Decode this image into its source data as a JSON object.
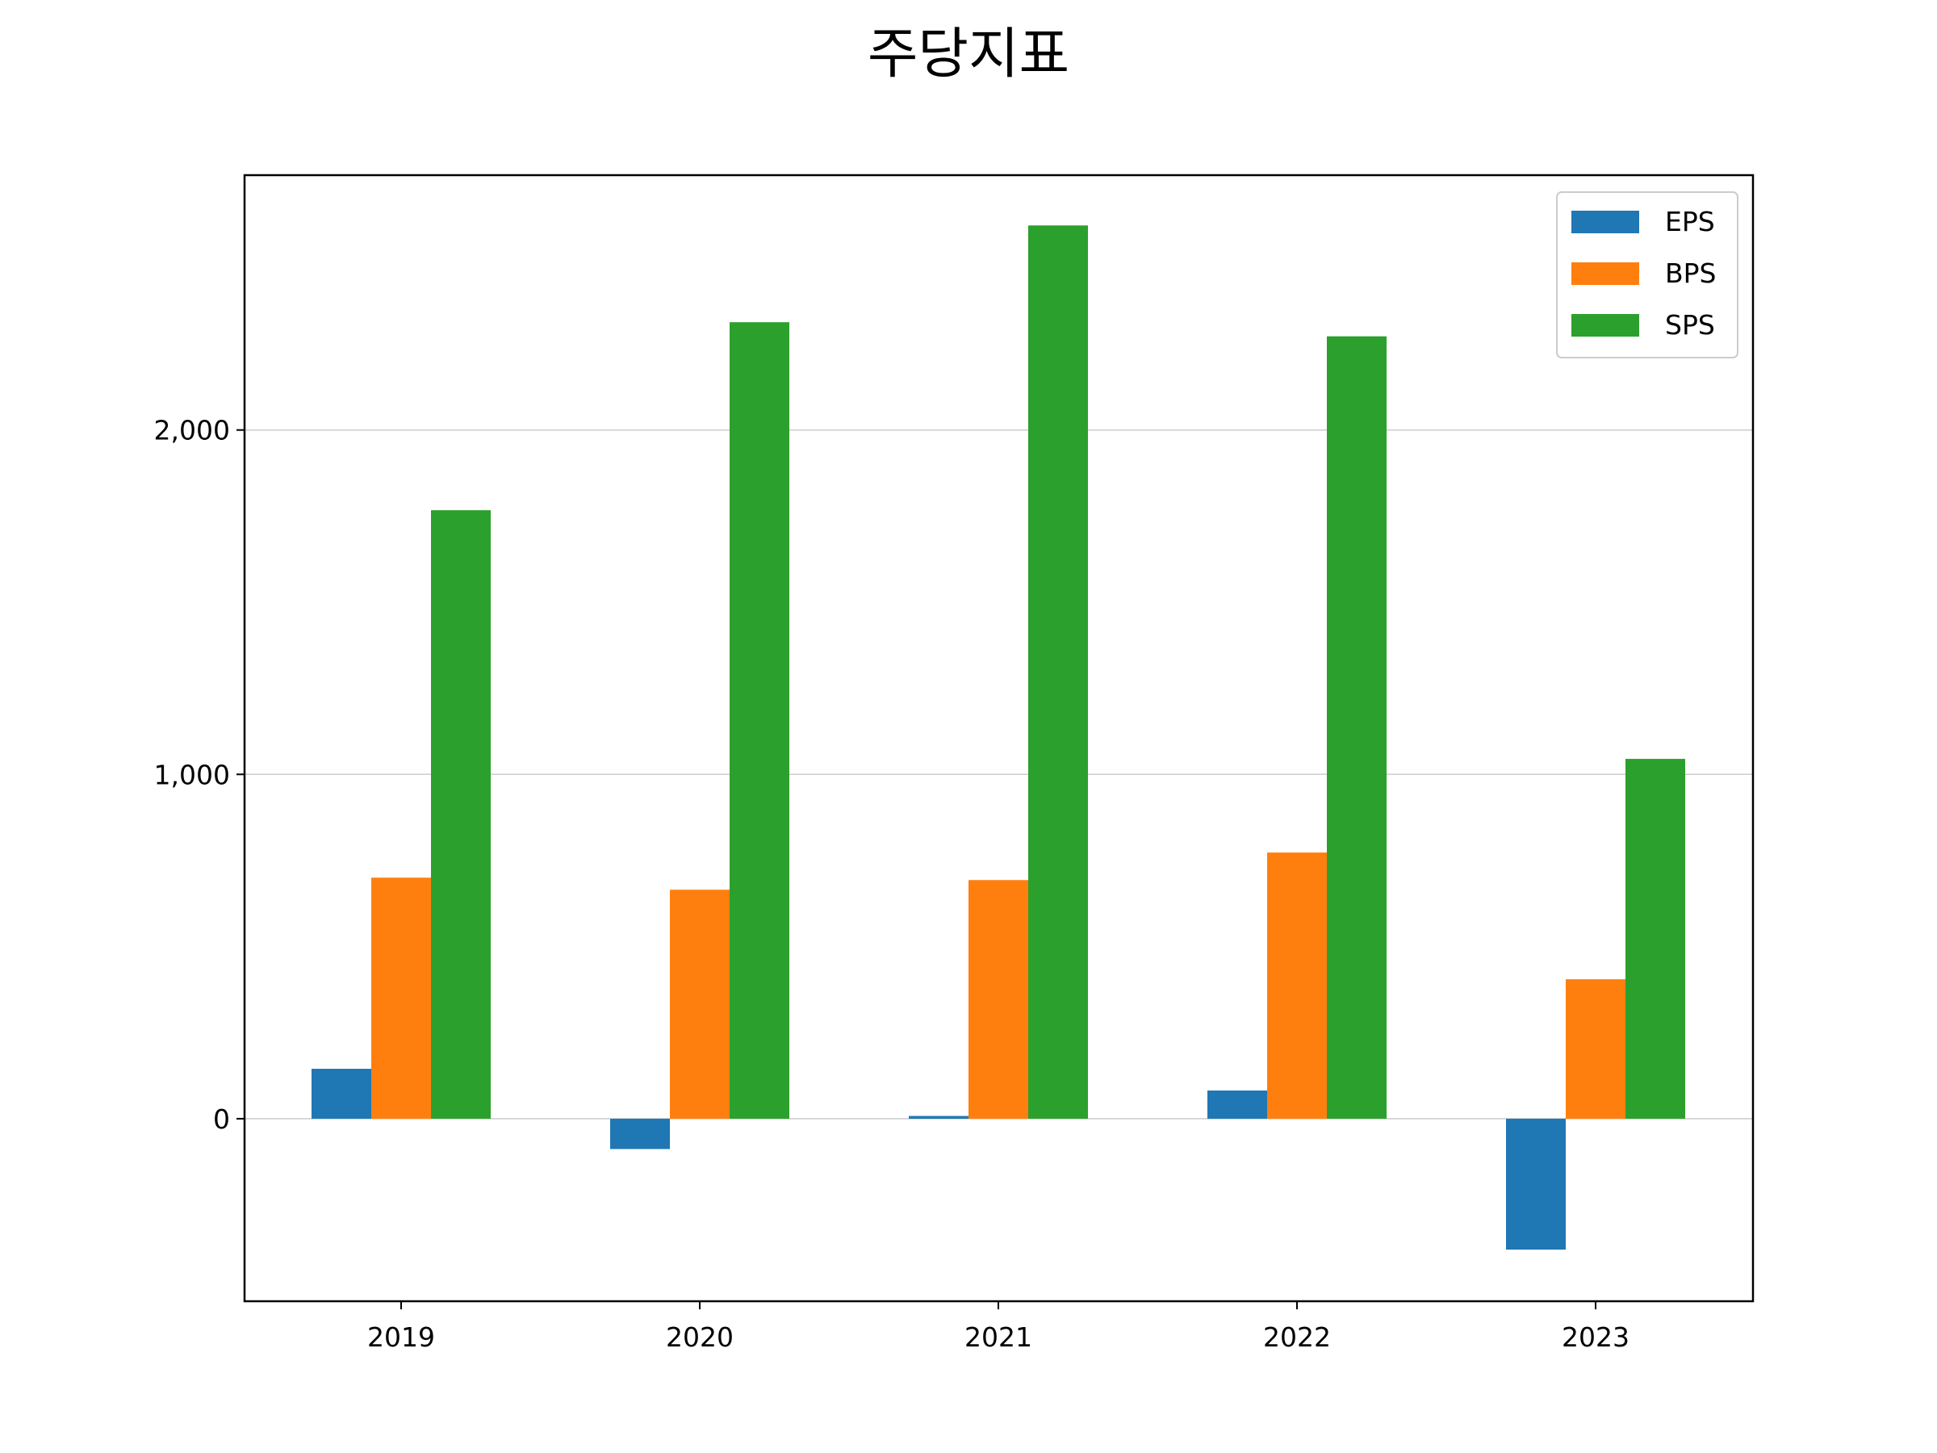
{
  "chart_data": {
    "type": "bar",
    "title": "주당지표",
    "xlabel": "",
    "ylabel": "",
    "categories": [
      "2019",
      "2020",
      "2021",
      "2022",
      "2023"
    ],
    "series": [
      {
        "name": "EPS",
        "color": "#1f77b4",
        "values": [
          145,
          -88,
          8,
          82,
          -380
        ]
      },
      {
        "name": "BPS",
        "color": "#ff7f0e",
        "values": [
          700,
          665,
          693,
          773,
          405
        ]
      },
      {
        "name": "SPS",
        "color": "#2ca02c",
        "values": [
          1767,
          2313,
          2594,
          2272,
          1045
        ]
      }
    ],
    "ylim": [
      -530,
      2740
    ],
    "yticks": [
      0,
      1000,
      2000
    ],
    "ytick_labels": [
      "0",
      "1,000",
      "2,000"
    ],
    "grid": "horizontal",
    "legend_position": "top-right"
  }
}
